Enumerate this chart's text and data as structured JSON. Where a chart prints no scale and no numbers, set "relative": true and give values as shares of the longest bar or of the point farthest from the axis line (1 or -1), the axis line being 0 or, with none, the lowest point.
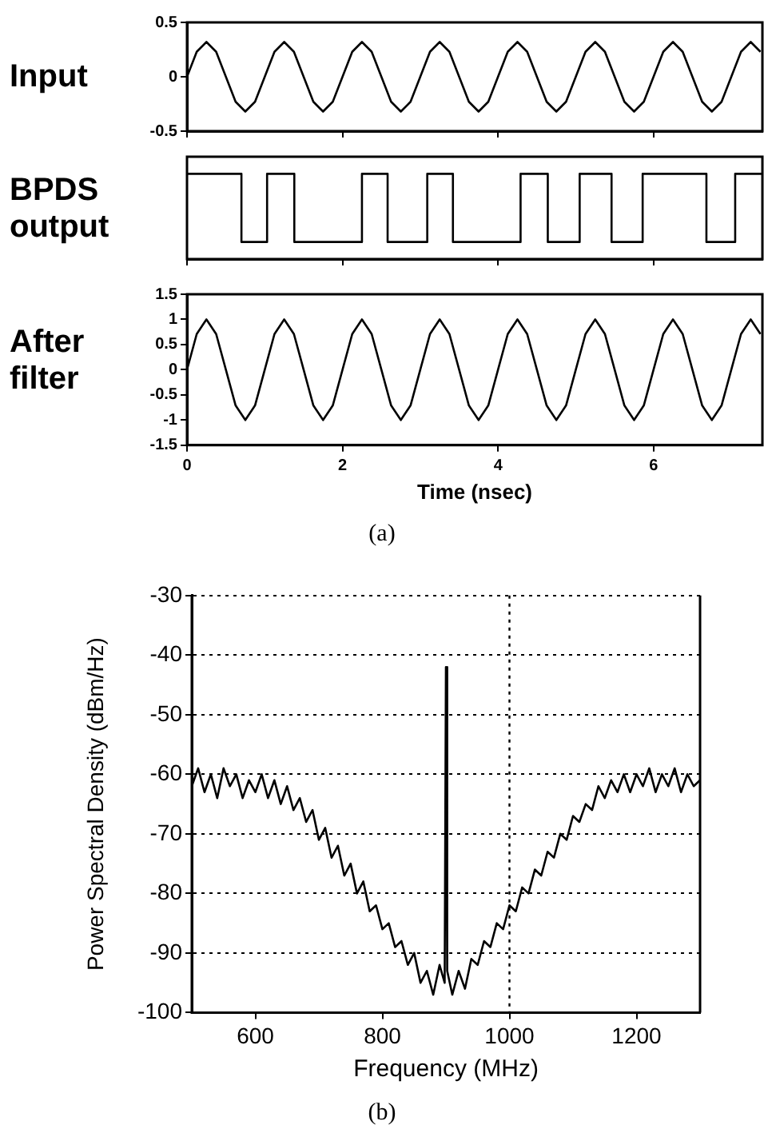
{
  "chart_data": [
    {
      "type": "line",
      "ylabel": "Input",
      "x": [
        0,
        0.125,
        0.25,
        0.375,
        0.5,
        0.625,
        0.75,
        0.875,
        1,
        1.125,
        1.25,
        1.375,
        1.5,
        1.625,
        1.75,
        1.875,
        2,
        2.125,
        2.25,
        2.375,
        2.5,
        2.625,
        2.75,
        2.875,
        3,
        3.125,
        3.25,
        3.375,
        3.5,
        3.625,
        3.75,
        3.875,
        4,
        4.125,
        4.25,
        4.375,
        4.5,
        4.625,
        4.75,
        4.875,
        5,
        5.125,
        5.25,
        5.375,
        5.5,
        5.625,
        5.75,
        5.875,
        6,
        6.125,
        6.25,
        6.375,
        6.5,
        6.625,
        6.75,
        6.875,
        7,
        7.125,
        7.25,
        7.375
      ],
      "values": [
        0,
        0.23,
        0.32,
        0.23,
        0,
        -0.23,
        -0.32,
        -0.23,
        0,
        0.23,
        0.32,
        0.23,
        0,
        -0.23,
        -0.32,
        -0.23,
        0,
        0.23,
        0.32,
        0.23,
        0,
        -0.23,
        -0.32,
        -0.23,
        0,
        0.23,
        0.32,
        0.23,
        0,
        -0.23,
        -0.32,
        -0.23,
        0,
        0.23,
        0.32,
        0.23,
        0,
        -0.23,
        -0.32,
        -0.23,
        0,
        0.23,
        0.32,
        0.23,
        0,
        -0.23,
        -0.32,
        -0.23,
        0,
        0.23,
        0.32,
        0.23,
        0,
        -0.23,
        -0.32,
        -0.23,
        0,
        0.23,
        0.32,
        0.23
      ],
      "color": "#000000",
      "xlim": [
        0,
        7.4
      ],
      "xticks": [
        0,
        2,
        4,
        6
      ],
      "ylim": [
        -0.5,
        0.5
      ],
      "yticks": [
        0.5,
        0,
        -0.5
      ],
      "tick_labels": "y"
    },
    {
      "type": "step",
      "ylabel": "BPDS output",
      "relative": true,
      "x": [
        0,
        0.7,
        1.03,
        1.38,
        2.25,
        2.58,
        3.09,
        3.42,
        4.29,
        4.64,
        5.05,
        5.46,
        5.86,
        6.68,
        7.05,
        7.4
      ],
      "values": [
        1,
        0.2,
        1,
        0.2,
        1,
        0.2,
        1,
        0.2,
        1,
        0.2,
        1,
        0.2,
        1,
        0.2,
        1,
        1
      ],
      "color": "#000000",
      "xlim": [
        0,
        7.4
      ],
      "xticks": [
        0,
        2,
        4,
        6
      ],
      "tick_labels": false
    },
    {
      "type": "line",
      "ylabel": "After filter",
      "xlabel": "Time (nsec)",
      "x": [
        0,
        0.125,
        0.25,
        0.375,
        0.5,
        0.625,
        0.75,
        0.875,
        1,
        1.125,
        1.25,
        1.375,
        1.5,
        1.625,
        1.75,
        1.875,
        2,
        2.125,
        2.25,
        2.375,
        2.5,
        2.625,
        2.75,
        2.875,
        3,
        3.125,
        3.25,
        3.375,
        3.5,
        3.625,
        3.75,
        3.875,
        4,
        4.125,
        4.25,
        4.375,
        4.5,
        4.625,
        4.75,
        4.875,
        5,
        5.125,
        5.25,
        5.375,
        5.5,
        5.625,
        5.75,
        5.875,
        6,
        6.125,
        6.25,
        6.375,
        6.5,
        6.625,
        6.75,
        6.875,
        7,
        7.125,
        7.25,
        7.375
      ],
      "values": [
        0,
        0.71,
        1,
        0.71,
        0,
        -0.71,
        -1,
        -0.71,
        0,
        0.71,
        1,
        0.71,
        0,
        -0.71,
        -1,
        -0.71,
        0,
        0.71,
        1,
        0.71,
        0,
        -0.71,
        -1,
        -0.71,
        0,
        0.71,
        1,
        0.71,
        0,
        -0.71,
        -1,
        -0.71,
        0,
        0.71,
        1,
        0.71,
        0,
        -0.71,
        -1,
        -0.71,
        0,
        0.71,
        1,
        0.71,
        0,
        -0.71,
        -1,
        -0.71,
        0,
        0.71,
        1,
        0.71,
        0,
        -0.71,
        -1,
        -0.71,
        0,
        0.71,
        1,
        0.71
      ],
      "color": "#000000",
      "xlim": [
        0,
        7.4
      ],
      "xticks": [
        0,
        2,
        4,
        6
      ],
      "ylim": [
        -1.5,
        1.5
      ],
      "yticks": [
        1.5,
        1,
        0.5,
        0,
        -0.5,
        -1,
        -1.5
      ],
      "annotations": [
        "(a)"
      ]
    },
    {
      "type": "line",
      "xlabel": "Frequency (MHz)",
      "ylabel": "Power Spectral Density (dBm/Hz)",
      "x": [
        500,
        510,
        520,
        530,
        540,
        550,
        560,
        570,
        580,
        590,
        600,
        610,
        620,
        630,
        640,
        650,
        660,
        670,
        680,
        690,
        700,
        710,
        720,
        730,
        740,
        750,
        760,
        770,
        780,
        790,
        800,
        810,
        820,
        830,
        840,
        850,
        860,
        870,
        880,
        890,
        898,
        900,
        902,
        910,
        920,
        930,
        940,
        950,
        960,
        970,
        980,
        990,
        1000,
        1010,
        1020,
        1030,
        1040,
        1050,
        1060,
        1070,
        1080,
        1090,
        1100,
        1110,
        1120,
        1130,
        1140,
        1150,
        1160,
        1170,
        1180,
        1190,
        1200,
        1210,
        1220,
        1230,
        1240,
        1250,
        1260,
        1270,
        1280,
        1290,
        1300
      ],
      "values": [
        -62,
        -59,
        -63,
        -60,
        -64,
        -59,
        -62,
        -60,
        -64,
        -61,
        -63,
        -60,
        -64,
        -61,
        -65,
        -62,
        -66,
        -64,
        -68,
        -66,
        -71,
        -69,
        -74,
        -72,
        -77,
        -75,
        -80,
        -78,
        -83,
        -82,
        -86,
        -85,
        -89,
        -88,
        -92,
        -90,
        -95,
        -93,
        -97,
        -92,
        -95,
        -42,
        -93,
        -97,
        -93,
        -96,
        -91,
        -92,
        -88,
        -89,
        -85,
        -86,
        -82,
        -83,
        -79,
        -80,
        -76,
        -77,
        -73,
        -74,
        -70,
        -71,
        -67,
        -68,
        -65,
        -66,
        -62,
        -64,
        -61,
        -63,
        -60,
        -63,
        -60,
        -62,
        -59,
        -63,
        -60,
        -62,
        -59,
        -63,
        -60,
        -62,
        -61
      ],
      "color": "#000000",
      "xlim": [
        500,
        1300
      ],
      "xticks": [
        600,
        800,
        1000,
        1200
      ],
      "ylim": [
        -100,
        -30
      ],
      "yticks": [
        -30,
        -40,
        -50,
        -60,
        -70,
        -80,
        -90,
        -100
      ],
      "grid": "y",
      "ref_lines": [
        {
          "axis": "x",
          "value": 1000,
          "line_style": "dotted"
        }
      ],
      "annotations": [
        "(b)"
      ]
    }
  ]
}
